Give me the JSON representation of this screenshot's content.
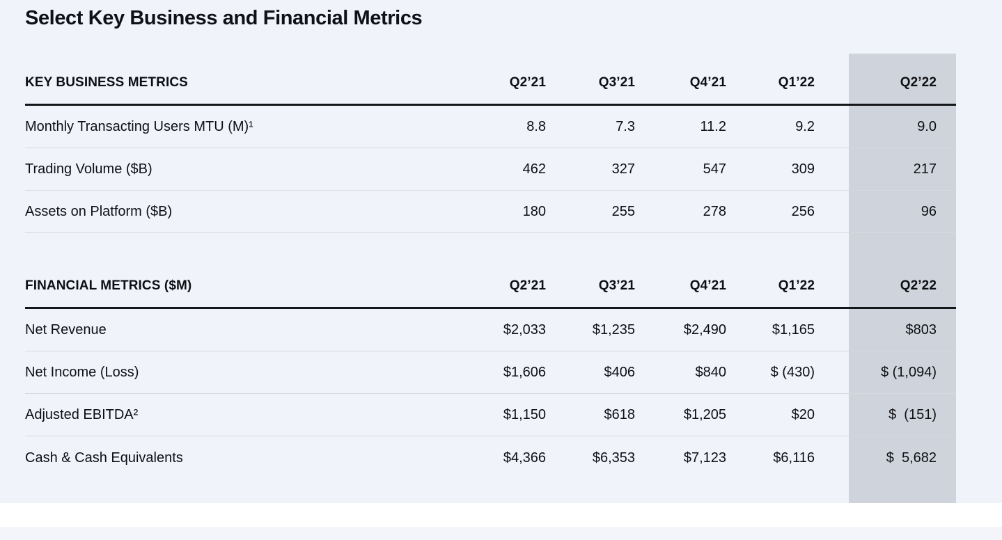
{
  "page": {
    "title": "Select Key Business and Financial Metrics"
  },
  "columns": [
    "Q2’21",
    "Q3’21",
    "Q4’21",
    "Q1’22",
    "Q2’22"
  ],
  "highlight": {
    "column": "Q2’22",
    "color": "#cfd3dc"
  },
  "colors": {
    "sheet_background": "#f0f3fa",
    "highlight_column": "#cfd3dc",
    "heavy_rule": "#15161a",
    "light_rule": "#d6d9e0",
    "text": "#0e0f13",
    "gap_band": "#ffffff",
    "bottom_band": "#f3f5fb"
  },
  "tables": [
    {
      "header": "KEY BUSINESS METRICS",
      "rows": [
        {
          "label": "Monthly Transacting Users MTU (M)¹",
          "values": [
            "8.8",
            "7.3",
            "11.2",
            "9.2",
            "9.0"
          ]
        },
        {
          "label": "Trading Volume ($B)",
          "values": [
            "462",
            "327",
            "547",
            "309",
            "217"
          ]
        },
        {
          "label": "Assets on Platform ($B)",
          "values": [
            "180",
            "255",
            "278",
            "256",
            "96"
          ]
        }
      ]
    },
    {
      "header": "FINANCIAL METRICS ($M)",
      "rows": [
        {
          "label": "Net Revenue",
          "values": [
            "$2,033",
            "$1,235",
            "$2,490",
            "$1,165",
            "$803"
          ]
        },
        {
          "label": "Net Income (Loss)",
          "values": [
            "$1,606",
            "$406",
            "$840",
            "$ (430)",
            "$ (1,094)"
          ]
        },
        {
          "label": "Adjusted EBITDA²",
          "values": [
            "$1,150",
            "$618",
            "$1,205",
            "$20",
            "$  (151)"
          ]
        },
        {
          "label": "Cash & Cash Equivalents",
          "values": [
            "$4,366",
            "$6,353",
            "$7,123",
            "$6,116",
            "$  5,682"
          ]
        }
      ]
    }
  ]
}
